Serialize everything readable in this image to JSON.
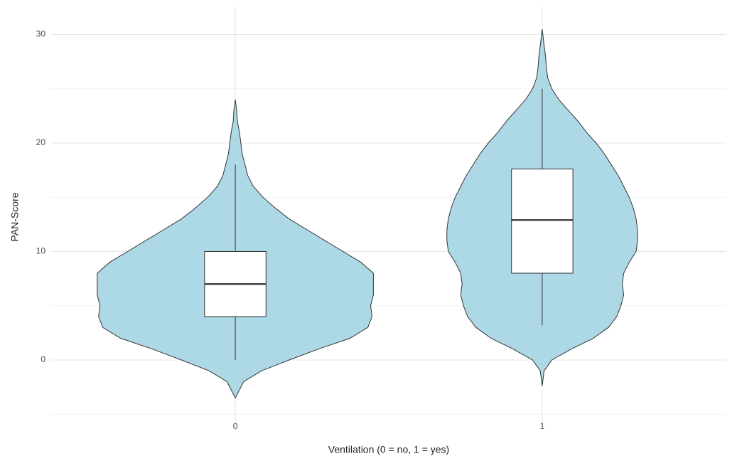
{
  "chart_data": {
    "type": "violin",
    "x_label": "Ventilation (0 = no, 1 = yes)",
    "y_label": "PAN-Score",
    "categories": [
      "0",
      "1"
    ],
    "fill": "#add8e6",
    "outline": "#333333",
    "ylim": [
      -6.2,
      32.5
    ],
    "yticks": [
      0,
      10,
      20,
      30
    ],
    "minor_yticks": [
      -5,
      5,
      15,
      25
    ],
    "grid": true,
    "groups": [
      {
        "box": {
          "whisker_low": 0,
          "q1": 4,
          "median": 7,
          "q3": 10,
          "whisker_high": 18
        },
        "density_y": [
          -3.5,
          -2,
          -1,
          0,
          1,
          2,
          3,
          4,
          5,
          6,
          7,
          8,
          9,
          10,
          11,
          12,
          13,
          14,
          15,
          16,
          17,
          18,
          19,
          20,
          21,
          22,
          23,
          24
        ],
        "density": [
          0,
          0.06,
          0.19,
          0.39,
          0.6,
          0.83,
          0.96,
          0.99,
          0.98,
          1.0,
          1.0,
          1.0,
          0.91,
          0.78,
          0.65,
          0.52,
          0.39,
          0.29,
          0.2,
          0.13,
          0.09,
          0.07,
          0.05,
          0.04,
          0.03,
          0.015,
          0.01,
          0
        ]
      },
      {
        "box": {
          "whisker_low": 3.2,
          "q1": 8,
          "median": 12.9,
          "q3": 17.6,
          "whisker_high": 25
        },
        "density_y": [
          -2.4,
          -1,
          0,
          1,
          2,
          3,
          4,
          5,
          6,
          7,
          8,
          9,
          10,
          11,
          12,
          13,
          14,
          15,
          16,
          17,
          18,
          19,
          20,
          21,
          22,
          23,
          24,
          25,
          26,
          27,
          28,
          29,
          30.5
        ],
        "density": [
          0,
          0.014,
          0.07,
          0.21,
          0.37,
          0.48,
          0.54,
          0.57,
          0.59,
          0.58,
          0.59,
          0.63,
          0.68,
          0.69,
          0.69,
          0.68,
          0.66,
          0.63,
          0.59,
          0.55,
          0.5,
          0.45,
          0.39,
          0.32,
          0.26,
          0.19,
          0.12,
          0.07,
          0.04,
          0.03,
          0.024,
          0.014,
          0
        ]
      }
    ]
  }
}
